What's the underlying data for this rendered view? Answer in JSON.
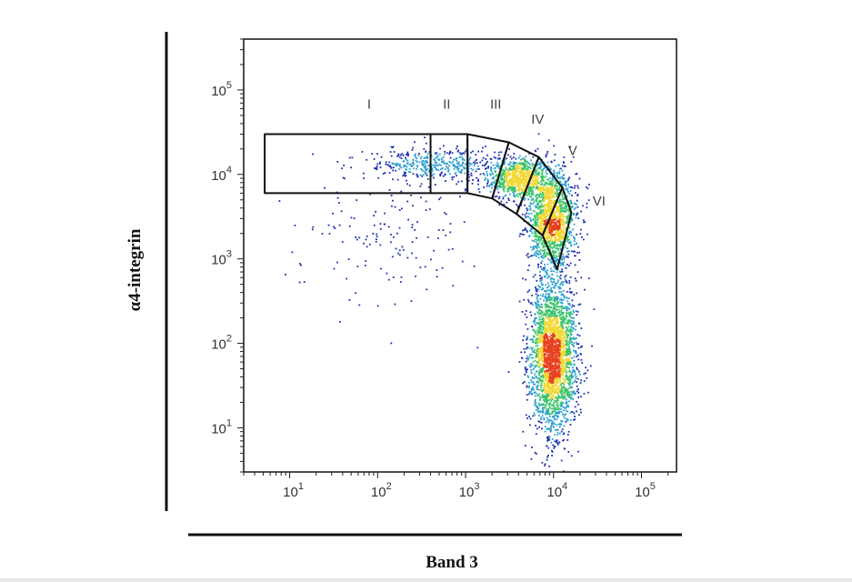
{
  "chart_data": {
    "type": "scatter",
    "plot_style": "flow-cytometry density dot plot",
    "xlabel": "Band 3",
    "ylabel": "α4-integrin",
    "xscale": "log",
    "yscale": "log",
    "xlim": [
      3,
      250000
    ],
    "ylim": [
      3,
      400000
    ],
    "x_ticks": [
      {
        "value": 10,
        "base": "10",
        "exp": "1"
      },
      {
        "value": 100,
        "base": "10",
        "exp": "2"
      },
      {
        "value": 1000,
        "base": "10",
        "exp": "3"
      },
      {
        "value": 10000,
        "base": "10",
        "exp": "4"
      },
      {
        "value": 100000,
        "base": "10",
        "exp": "5"
      }
    ],
    "y_ticks": [
      {
        "value": 10,
        "base": "10",
        "exp": "1"
      },
      {
        "value": 100,
        "base": "10",
        "exp": "2"
      },
      {
        "value": 1000,
        "base": "10",
        "exp": "3"
      },
      {
        "value": 10000,
        "base": "10",
        "exp": "4"
      },
      {
        "value": 100000,
        "base": "10",
        "exp": "5"
      }
    ],
    "density_colors": [
      "#1f2fae",
      "#2a9fd0",
      "#39c36a",
      "#f2d833",
      "#e6401f"
    ],
    "populations": [
      {
        "x_center": 10000,
        "y_center": 70,
        "x_spread_log": 0.13,
        "y_spread_log": 0.45,
        "n": 2600
      },
      {
        "x_center": 9500,
        "y_center": 3000,
        "x_spread_log": 0.14,
        "y_spread_log": 0.3,
        "n": 1500
      },
      {
        "x_center": 4000,
        "y_center": 9000,
        "x_spread_log": 0.18,
        "y_spread_log": 0.12,
        "n": 800
      },
      {
        "x_center": 500,
        "y_center": 13000,
        "x_spread_log": 0.35,
        "y_spread_log": 0.1,
        "n": 420
      },
      {
        "x_center": 120,
        "y_center": 2000,
        "x_spread_log": 0.55,
        "y_spread_log": 0.45,
        "n": 150
      }
    ],
    "gates": [
      {
        "label": "I",
        "vertices": [
          [
            5.2,
            30000
          ],
          [
            400,
            30000
          ],
          [
            400,
            6000
          ],
          [
            5.2,
            6000
          ]
        ],
        "label_at": [
          80,
          60000
        ]
      },
      {
        "label": "II",
        "vertices": [
          [
            400,
            30000
          ],
          [
            1050,
            30000
          ],
          [
            1050,
            6000
          ],
          [
            400,
            6000
          ]
        ],
        "label_at": [
          610,
          60000
        ]
      },
      {
        "label": "III",
        "vertices": [
          [
            1050,
            30000
          ],
          [
            3100,
            24000
          ],
          [
            2000,
            5200
          ],
          [
            1050,
            6000
          ]
        ],
        "label_at": [
          2200,
          60000
        ]
      },
      {
        "label": "IV",
        "vertices": [
          [
            3100,
            24000
          ],
          [
            6800,
            16000
          ],
          [
            3800,
            3400
          ],
          [
            2000,
            5200
          ]
        ],
        "label_at": [
          6600,
          40000
        ]
      },
      {
        "label": "V",
        "vertices": [
          [
            6800,
            16000
          ],
          [
            12600,
            7000
          ],
          [
            7500,
            1900
          ],
          [
            3800,
            3400
          ]
        ],
        "label_at": [
          16500,
          17000
        ]
      },
      {
        "label": "VI",
        "vertices": [
          [
            12600,
            7000
          ],
          [
            16000,
            3500
          ],
          [
            11000,
            750
          ],
          [
            7500,
            1900
          ]
        ],
        "label_at": [
          33000,
          4300
        ]
      }
    ]
  }
}
